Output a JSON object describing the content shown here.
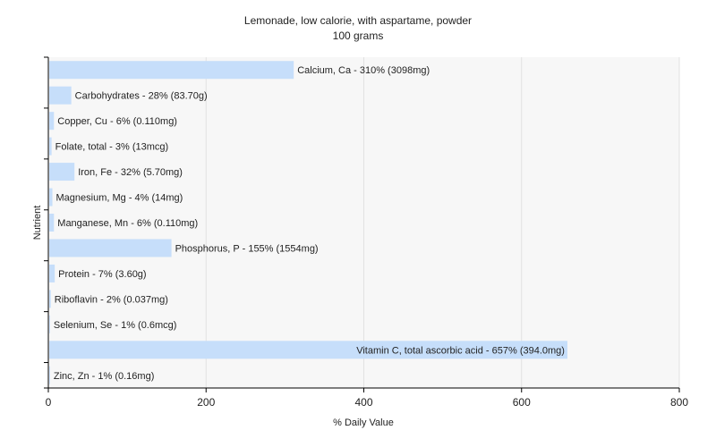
{
  "chart_data": {
    "type": "bar",
    "orientation": "horizontal",
    "title": "Lemonade, low calorie, with aspartame, powder",
    "subtitle": "100 grams",
    "xlabel": "% Daily Value",
    "ylabel": "Nutrient",
    "xlim": [
      0,
      800
    ],
    "xticks": [
      0,
      200,
      400,
      600,
      800
    ],
    "grid": true,
    "colors": {
      "bar": "#c6defa",
      "plot_bg": "#f7f7f7",
      "grid": "#e2e2e2",
      "axis": "#000000"
    },
    "categories": [
      "Calcium, Ca",
      "Carbohydrates",
      "Copper, Cu",
      "Folate, total",
      "Iron, Fe",
      "Magnesium, Mg",
      "Manganese, Mn",
      "Phosphorus, P",
      "Protein",
      "Riboflavin",
      "Selenium, Se",
      "Vitamin C, total ascorbic acid",
      "Zinc, Zn"
    ],
    "values": [
      310,
      28,
      6,
      3,
      32,
      4,
      6,
      155,
      7,
      2,
      1,
      657,
      1
    ],
    "labels": [
      "Calcium, Ca - 310% (3098mg)",
      "Carbohydrates - 28% (83.70g)",
      "Copper, Cu - 6% (0.110mg)",
      "Folate, total - 3% (13mcg)",
      "Iron, Fe - 32% (5.70mg)",
      "Magnesium, Mg - 4% (14mg)",
      "Manganese, Mn - 6% (0.110mg)",
      "Phosphorus, P - 155% (1554mg)",
      "Protein - 7% (3.60g)",
      "Riboflavin - 2% (0.037mg)",
      "Selenium, Se - 1% (0.6mcg)",
      "Vitamin C, total ascorbic acid - 657% (394.0mg)",
      "Zinc, Zn - 1% (0.16mg)"
    ]
  }
}
